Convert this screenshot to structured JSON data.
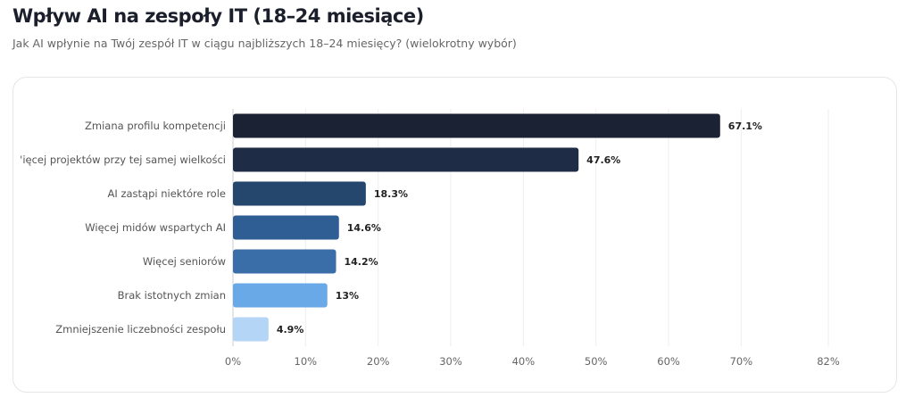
{
  "header": {
    "title": "Wpływ AI na zespoły IT (18–24 miesiące)",
    "subtitle": "Jak AI wpłynie na Twój zespół IT w ciągu najbliższych 18–24 miesięcy? (wielokrotny wybór)"
  },
  "chart_data": {
    "type": "bar",
    "orientation": "horizontal",
    "title": "Wpływ AI na zespoły IT (18–24 miesiące)",
    "categories": [
      "Zmiana profilu kompetencji",
      "'ięcej projektów przy tej samej wielkości",
      "AI zastąpi niektóre role",
      "Więcej midów wspartych AI",
      "Więcej seniorów",
      "Brak istotnych zmian",
      "Zmniejszenie liczebności zespołu"
    ],
    "values": [
      67.1,
      47.6,
      18.3,
      14.6,
      14.2,
      13,
      4.9
    ],
    "value_labels": [
      "67.1%",
      "47.6%",
      "18.3%",
      "14.6%",
      "14.2%",
      "13%",
      "4.9%"
    ],
    "colors": [
      "#1b2233",
      "#1f2c46",
      "#25466d",
      "#2f5e94",
      "#3a6ea9",
      "#6aa9e7",
      "#b4d5f5"
    ],
    "xlim": [
      0,
      82
    ],
    "x_ticks": [
      0,
      10,
      20,
      30,
      40,
      50,
      60,
      70,
      82
    ],
    "x_tick_labels": [
      "0%",
      "10%",
      "20%",
      "30%",
      "40%",
      "50%",
      "60%",
      "70%",
      "82%"
    ],
    "grid": true
  }
}
